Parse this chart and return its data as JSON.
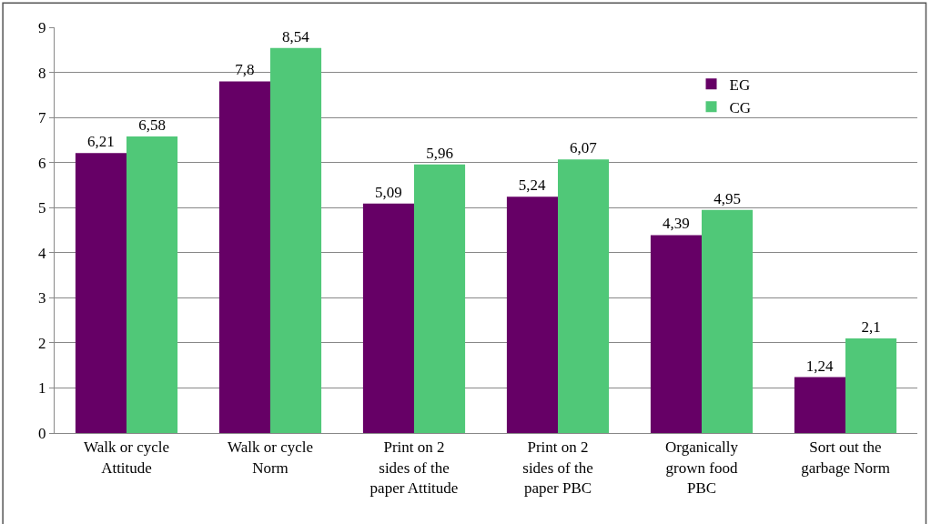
{
  "chart_data": {
    "type": "bar",
    "categories": [
      "Walk or cycle\nAttitude",
      "Walk or cycle\nNorm",
      "Print on 2\nsides of the\npaper Attitude",
      "Print on 2\nsides of the\npaper PBC",
      "Organically\ngrown food\nPBC",
      "Sort out the\ngarbage Norm"
    ],
    "series": [
      {
        "name": "EG",
        "color": "#660066",
        "values": [
          6.21,
          7.8,
          5.09,
          5.24,
          4.39,
          1.24
        ],
        "value_labels": [
          "6,21",
          "7,8",
          "5,09",
          "5,24",
          "4,39",
          "1,24"
        ]
      },
      {
        "name": "CG",
        "color": "#50c878",
        "values": [
          6.58,
          8.54,
          5.96,
          6.07,
          4.95,
          2.1
        ],
        "value_labels": [
          "6,58",
          "8,54",
          "5,96",
          "6,07",
          "4,95",
          "2,1"
        ]
      }
    ],
    "ylim": [
      0,
      9
    ],
    "yticks": [
      0,
      1,
      2,
      3,
      4,
      5,
      6,
      7,
      8,
      9
    ],
    "grid": "y",
    "legend": "top right"
  }
}
